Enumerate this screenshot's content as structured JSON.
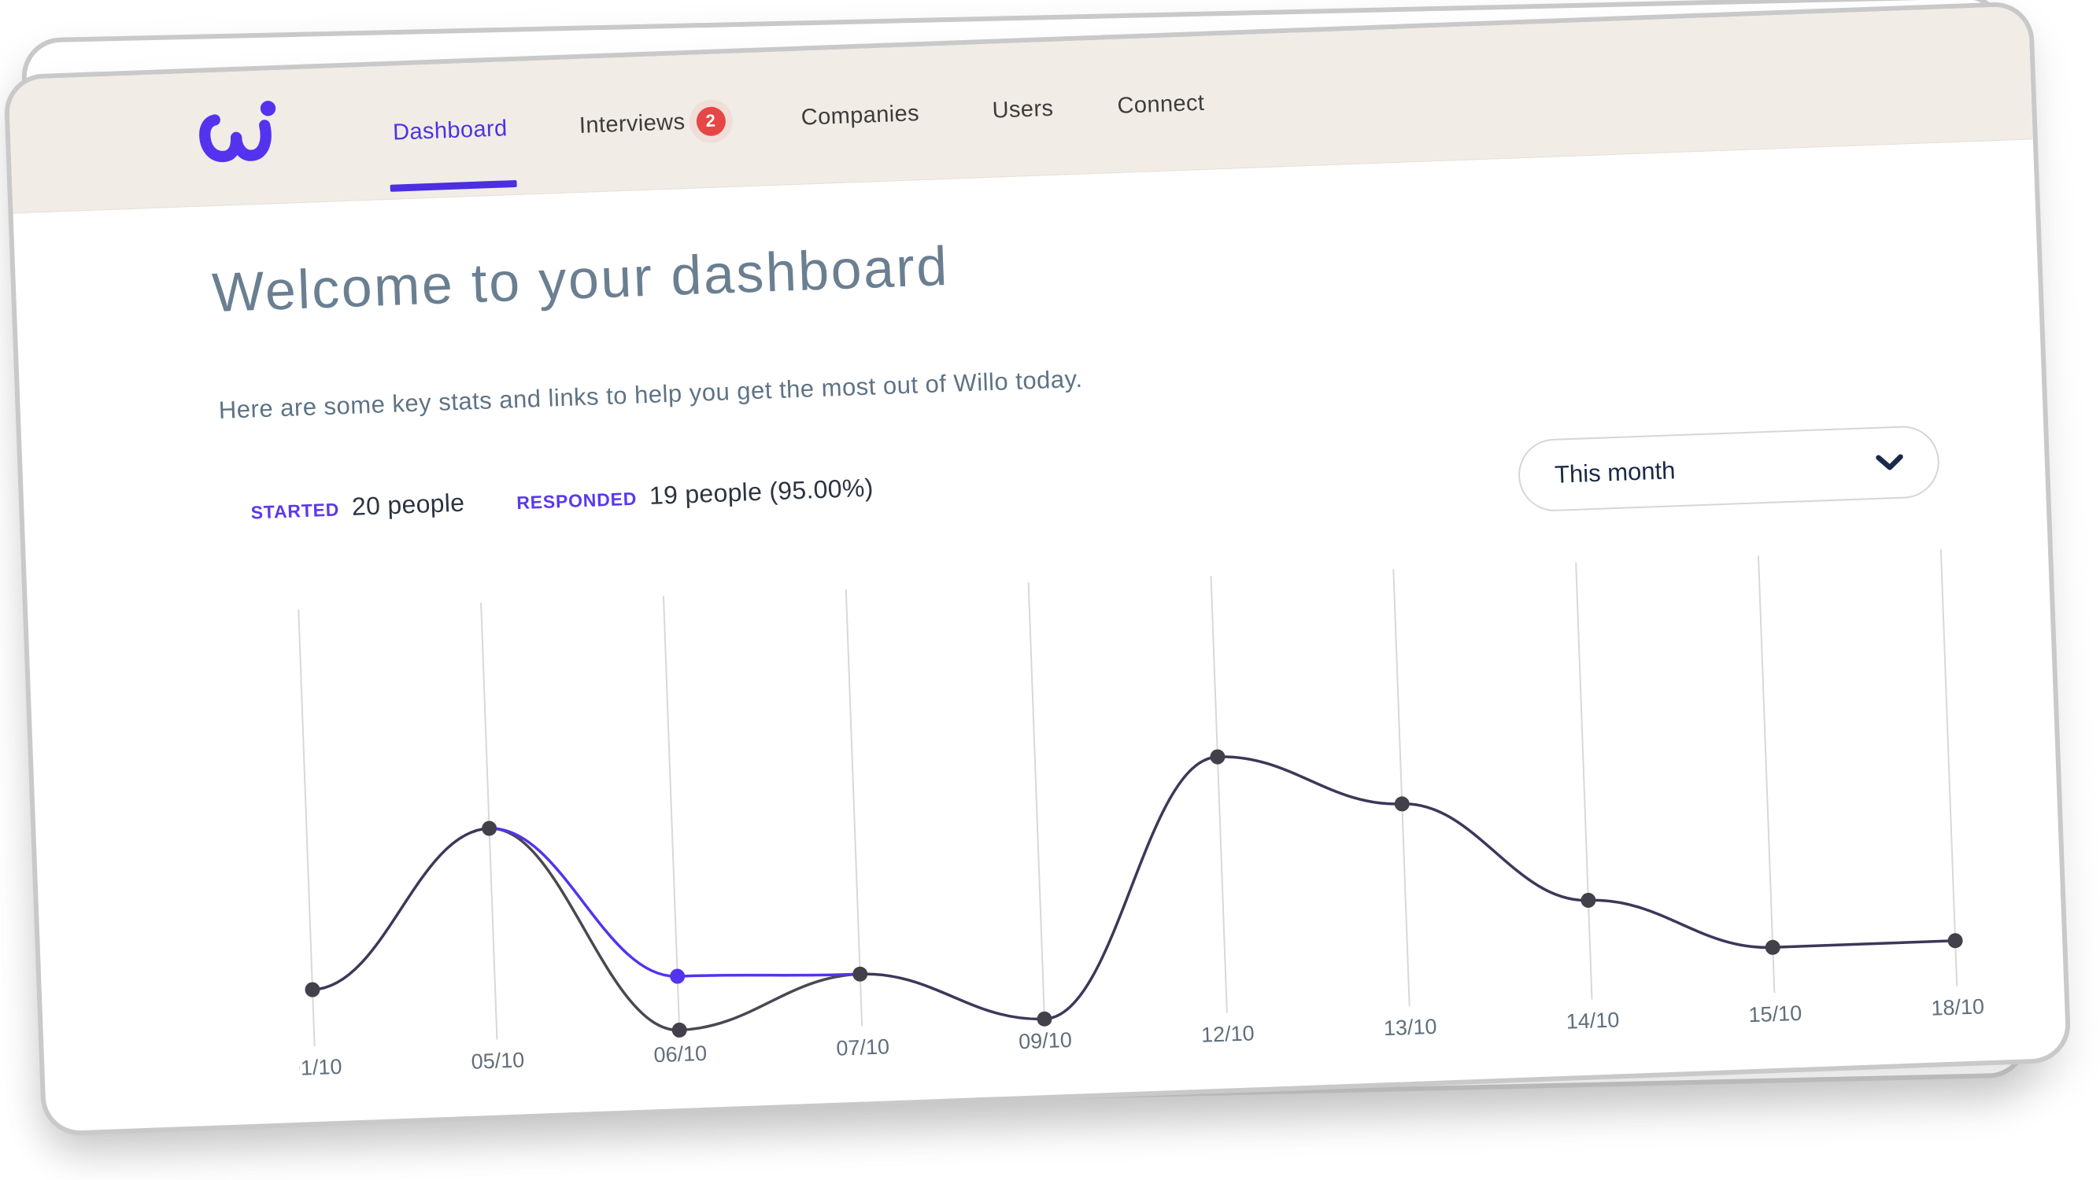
{
  "window": {
    "background": "#ffffff",
    "card_border": "#c9c9c9"
  },
  "theme": {
    "brand_purple": "#5433ee",
    "nav_active_purple": "#4b33e4",
    "nav_bg_beige": "#f1ece6",
    "heading_slate": "#6a7f91",
    "text_dark": "#2d333f",
    "badge_red": "#e64646"
  },
  "brand": {
    "logo_icon": "willo-logo",
    "logo_color": "#5433ee"
  },
  "nav": {
    "items": [
      {
        "label": "Dashboard",
        "active": true
      },
      {
        "label": "Interviews",
        "badge": "2"
      },
      {
        "label": "Companies"
      },
      {
        "label": "Users"
      },
      {
        "label": "Connect"
      }
    ]
  },
  "header": {
    "title": "Welcome to your dashboard",
    "subtitle": "Here are some key stats and links to help you get the most out of Willo today."
  },
  "stats": [
    {
      "label": "STARTED",
      "value": "20 people"
    },
    {
      "label": "RESPONDED",
      "value": "19 people (95.00%)"
    }
  ],
  "filter": {
    "selected": "This month",
    "icon": "chevron-down-icon"
  },
  "chart_data": {
    "type": "line",
    "title": "",
    "categories": [
      "01/10",
      "05/10",
      "06/10",
      "07/10",
      "09/10",
      "12/10",
      "13/10",
      "14/10",
      "15/10",
      "18/10"
    ],
    "series": [
      {
        "name": "purple_line",
        "color": "#5433ee",
        "values": [
          1.65,
          5.1,
          1.65,
          1.55,
          0.4,
          6.1,
          4.9,
          2.6,
          1.4,
          1.4
        ]
      },
      {
        "name": "dark_line",
        "color": "#4b4751",
        "values": [
          1.65,
          5.1,
          0.45,
          1.55,
          0.4,
          6.1,
          4.9,
          2.6,
          1.4,
          1.4
        ]
      }
    ],
    "overlap_color": "#3d3759",
    "dot_color": "#434049",
    "grid": true,
    "grid_color": "#d8d8d8",
    "label_color": "#5f6e7b",
    "xlabel": "",
    "ylabel": "",
    "y_axis": "unlabeled; values are relative units estimated from pixel heights",
    "legend": "none"
  }
}
